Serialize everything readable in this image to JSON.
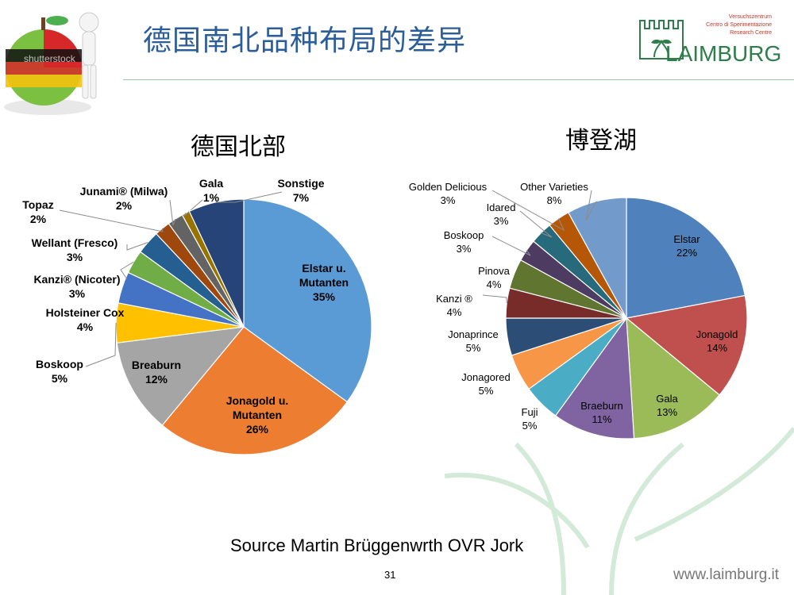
{
  "header": {
    "title": "德国南北品种布局的差异",
    "watermark": "shutterstock"
  },
  "logo": {
    "line1": "Versuchszentrum",
    "line2": "Centro di Sperimentazione",
    "line3": "Research Centre",
    "wordmark": "LAIMBURG"
  },
  "colors": {
    "title_blue": "#2a5d9a",
    "rule_green": "#9cc7a6",
    "logo_green": "#2e7d4a",
    "logo_red": "#c0392b"
  },
  "footer": {
    "source": "Source Martin Brüggenwrth OVR Jork",
    "page_number": "31",
    "website": "www.laimburg.it"
  },
  "chart_data": [
    {
      "type": "pie",
      "title": "德国北部",
      "slices": [
        {
          "name": "Elstar u. Mutanten",
          "value": 35,
          "label": "35%",
          "color": "#5b9bd5",
          "lines": [
            "Elstar u.",
            "Mutanten",
            "35%"
          ]
        },
        {
          "name": "Jonagold u. Mutanten",
          "value": 26,
          "label": "26%",
          "color": "#ed7d31",
          "lines": [
            "Jonagold u.",
            "Mutanten",
            "26%"
          ]
        },
        {
          "name": "Breaburn",
          "value": 12,
          "label": "12%",
          "color": "#a5a5a5",
          "lines": [
            "Breaburn",
            "12%"
          ]
        },
        {
          "name": "Boskoop",
          "value": 5,
          "label": "5%",
          "color": "#ffc000",
          "lines": [
            "Boskoop",
            "5%"
          ]
        },
        {
          "name": "Holsteiner Cox",
          "value": 4,
          "label": "4%",
          "color": "#4472c4",
          "lines": [
            "Holsteiner Cox",
            "4%"
          ]
        },
        {
          "name": "Kanzi® (Nicoter)",
          "value": 3,
          "label": "3%",
          "color": "#70ad47",
          "lines": [
            "Kanzi® (Nicoter)",
            "3%"
          ]
        },
        {
          "name": "Wellant (Fresco)",
          "value": 3,
          "label": "3%",
          "color": "#255e91",
          "lines": [
            "Wellant (Fresco)",
            "3%"
          ]
        },
        {
          "name": "Topaz",
          "value": 2,
          "label": "2%",
          "color": "#9e480e",
          "lines": [
            "Topaz",
            "2%"
          ]
        },
        {
          "name": "Junami® (Milwa)",
          "value": 2,
          "label": "2%",
          "color": "#636363",
          "lines": [
            "Junami® (Milwa)",
            "2%"
          ]
        },
        {
          "name": "Gala",
          "value": 1,
          "label": "1%",
          "color": "#997300",
          "lines": [
            "Gala",
            "1%"
          ]
        },
        {
          "name": "Sonstige",
          "value": 7,
          "label": "7%",
          "color": "#264478",
          "lines": [
            "Sonstige",
            "7%"
          ]
        }
      ]
    },
    {
      "type": "pie",
      "title": "博登湖",
      "slices": [
        {
          "name": "Elstar",
          "value": 22,
          "label": "22%",
          "color": "#4f81bd",
          "lines": [
            "Elstar",
            "22%"
          ]
        },
        {
          "name": "Jonagold",
          "value": 14,
          "label": "14%",
          "color": "#c0504d",
          "lines": [
            "Jonagold",
            "14%"
          ]
        },
        {
          "name": "Gala",
          "value": 13,
          "label": "13%",
          "color": "#9bbb59",
          "lines": [
            "Gala",
            "13%"
          ]
        },
        {
          "name": "Braeburn",
          "value": 11,
          "label": "11%",
          "color": "#8064a2",
          "lines": [
            "Braeburn",
            "11%"
          ]
        },
        {
          "name": "Fuji",
          "value": 5,
          "label": "5%",
          "color": "#4bacc6",
          "lines": [
            "Fuji",
            "5%"
          ]
        },
        {
          "name": "Jonagored",
          "value": 5,
          "label": "5%",
          "color": "#f79646",
          "lines": [
            "Jonagored",
            "5%"
          ]
        },
        {
          "name": "Jonaprince",
          "value": 5,
          "label": "5%",
          "color": "#2c4d75",
          "lines": [
            "Jonaprince",
            "5%"
          ]
        },
        {
          "name": "Kanzi ®",
          "value": 4,
          "label": "4%",
          "color": "#772c2a",
          "lines": [
            "Kanzi ®",
            "4%"
          ]
        },
        {
          "name": "Pinova",
          "value": 4,
          "label": "4%",
          "color": "#5f7530",
          "lines": [
            "Pinova",
            "4%"
          ]
        },
        {
          "name": "Boskoop",
          "value": 3,
          "label": "3%",
          "color": "#4d3b62",
          "lines": [
            "Boskoop",
            "3%"
          ]
        },
        {
          "name": "Idared",
          "value": 3,
          "label": "3%",
          "color": "#276a7c",
          "lines": [
            "Idared",
            "3%"
          ]
        },
        {
          "name": "Golden Delicious",
          "value": 3,
          "label": "3%",
          "color": "#b65708",
          "lines": [
            "Golden Delicious",
            "3%"
          ]
        },
        {
          "name": "Other Varieties",
          "value": 8,
          "label": "8%",
          "color": "#729aca",
          "lines": [
            "Other Varieties",
            "8%"
          ]
        }
      ]
    }
  ]
}
